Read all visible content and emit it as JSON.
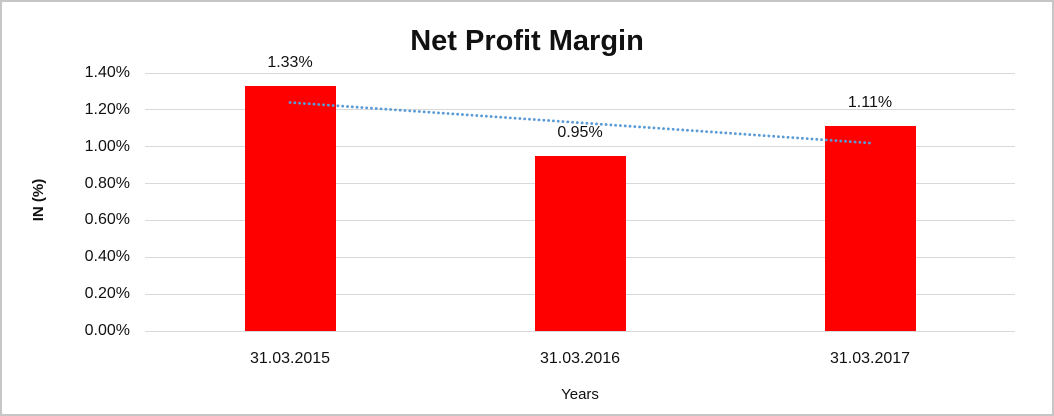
{
  "chart_data": {
    "type": "bar",
    "title": "Net Profit Margin",
    "xlabel": "Years",
    "ylabel": "IN (%)",
    "categories": [
      "31.03.2015",
      "31.03.2016",
      "31.03.2017"
    ],
    "values": [
      1.33,
      0.95,
      1.11
    ],
    "data_labels": [
      "1.33%",
      "0.95%",
      "1.11%"
    ],
    "ylim": [
      0,
      1.4
    ],
    "ytick_values": [
      0,
      0.2,
      0.4,
      0.6,
      0.8,
      1.0,
      1.2,
      1.4
    ],
    "ytick_labels": [
      "0.00%",
      "0.20%",
      "0.40%",
      "0.60%",
      "0.80%",
      "1.00%",
      "1.20%",
      "1.40%"
    ],
    "grid": true,
    "legend": "none",
    "bar_color": "#ff0000",
    "gridline_color": "#d9d9d9",
    "text_color": "#111111",
    "trendline": {
      "type": "linear",
      "style": "dotted",
      "color": "#5b9bd5",
      "start_value": 1.24,
      "end_value": 1.02
    }
  }
}
